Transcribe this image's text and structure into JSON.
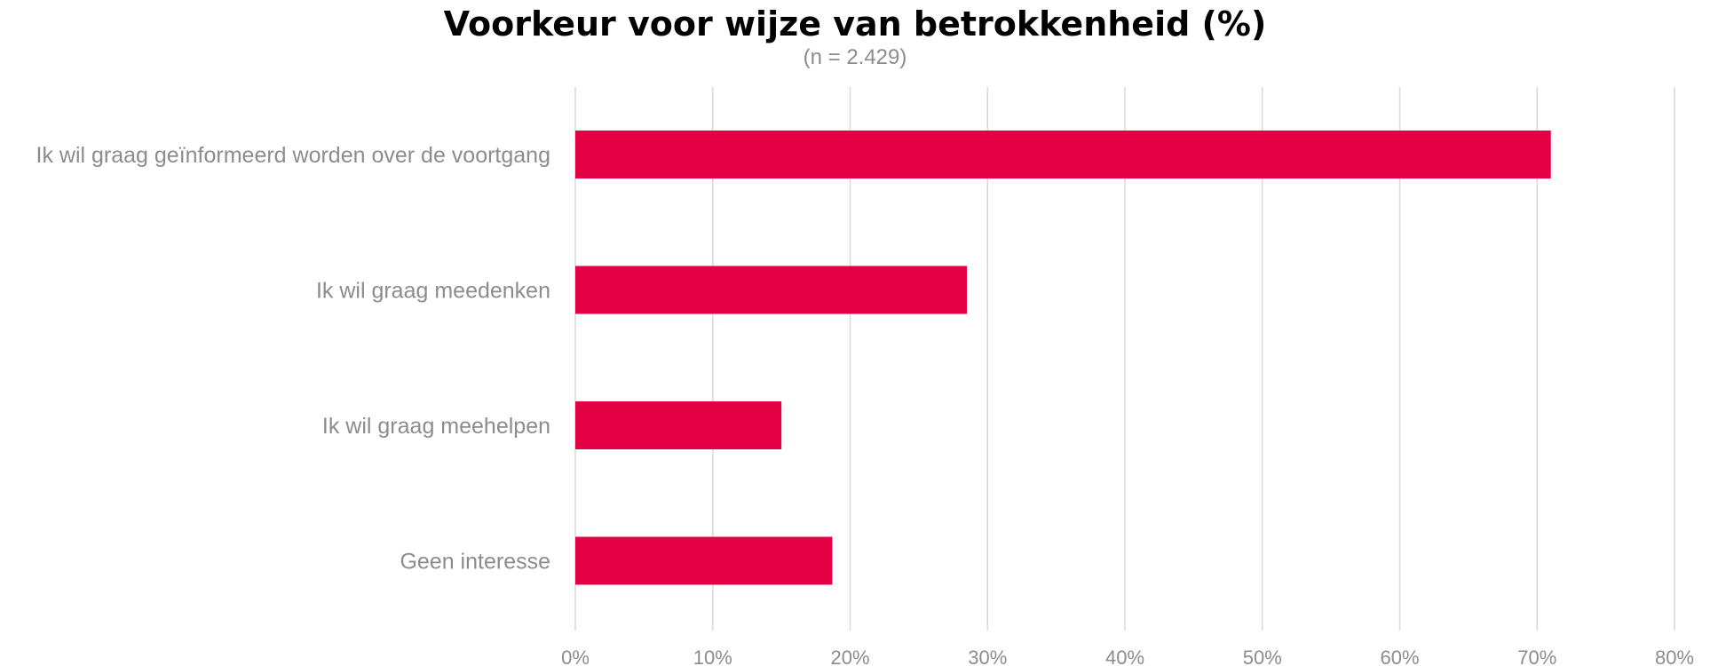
{
  "chart_data": {
    "type": "bar",
    "orientation": "horizontal",
    "title": "Voorkeur voor wijze van betrokkenheid (%)",
    "subtitle": "(n = 2.429)",
    "categories": [
      "Ik wil graag geïnformeerd worden over de voortgang",
      "Ik wil graag meedenken",
      "Ik wil graag meehelpen",
      "Geen interesse"
    ],
    "values": [
      71,
      28.5,
      15,
      18.7
    ],
    "xlim": [
      0,
      80
    ],
    "x_ticks": [
      0,
      10,
      20,
      30,
      40,
      50,
      60,
      70,
      80
    ],
    "x_tick_labels": [
      "0%",
      "10%",
      "20%",
      "30%",
      "40%",
      "50%",
      "60%",
      "70%",
      "80%"
    ],
    "xlabel": "",
    "ylabel": "",
    "grid": "vertical",
    "legend": "none",
    "bar_color": "#E30045"
  }
}
